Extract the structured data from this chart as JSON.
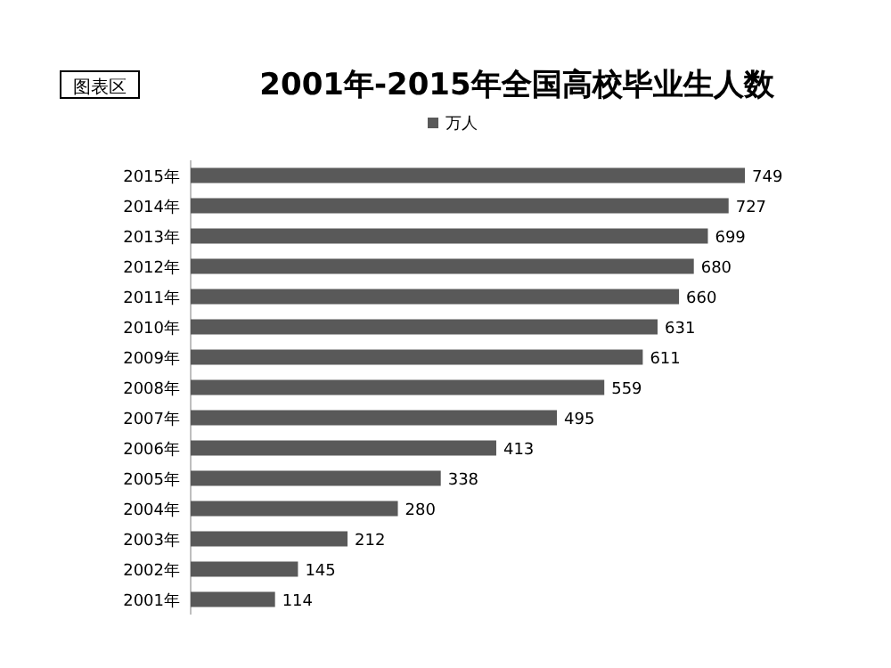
{
  "chart_data": {
    "type": "bar",
    "orientation": "horizontal",
    "title": "2001年-2015年全国高校毕业生人数",
    "annotations": [
      "图表区"
    ],
    "categories": [
      "2015年",
      "2014年",
      "2013年",
      "2012年",
      "2011年",
      "2010年",
      "2009年",
      "2008年",
      "2007年",
      "2006年",
      "2005年",
      "2004年",
      "2003年",
      "2002年",
      "2001年"
    ],
    "series": [
      {
        "name": "万人",
        "color": "#595959",
        "values": [
          749,
          727,
          699,
          680,
          660,
          631,
          611,
          559,
          495,
          413,
          338,
          280,
          212,
          145,
          114
        ]
      }
    ],
    "data_labels": true,
    "legend": "top"
  }
}
